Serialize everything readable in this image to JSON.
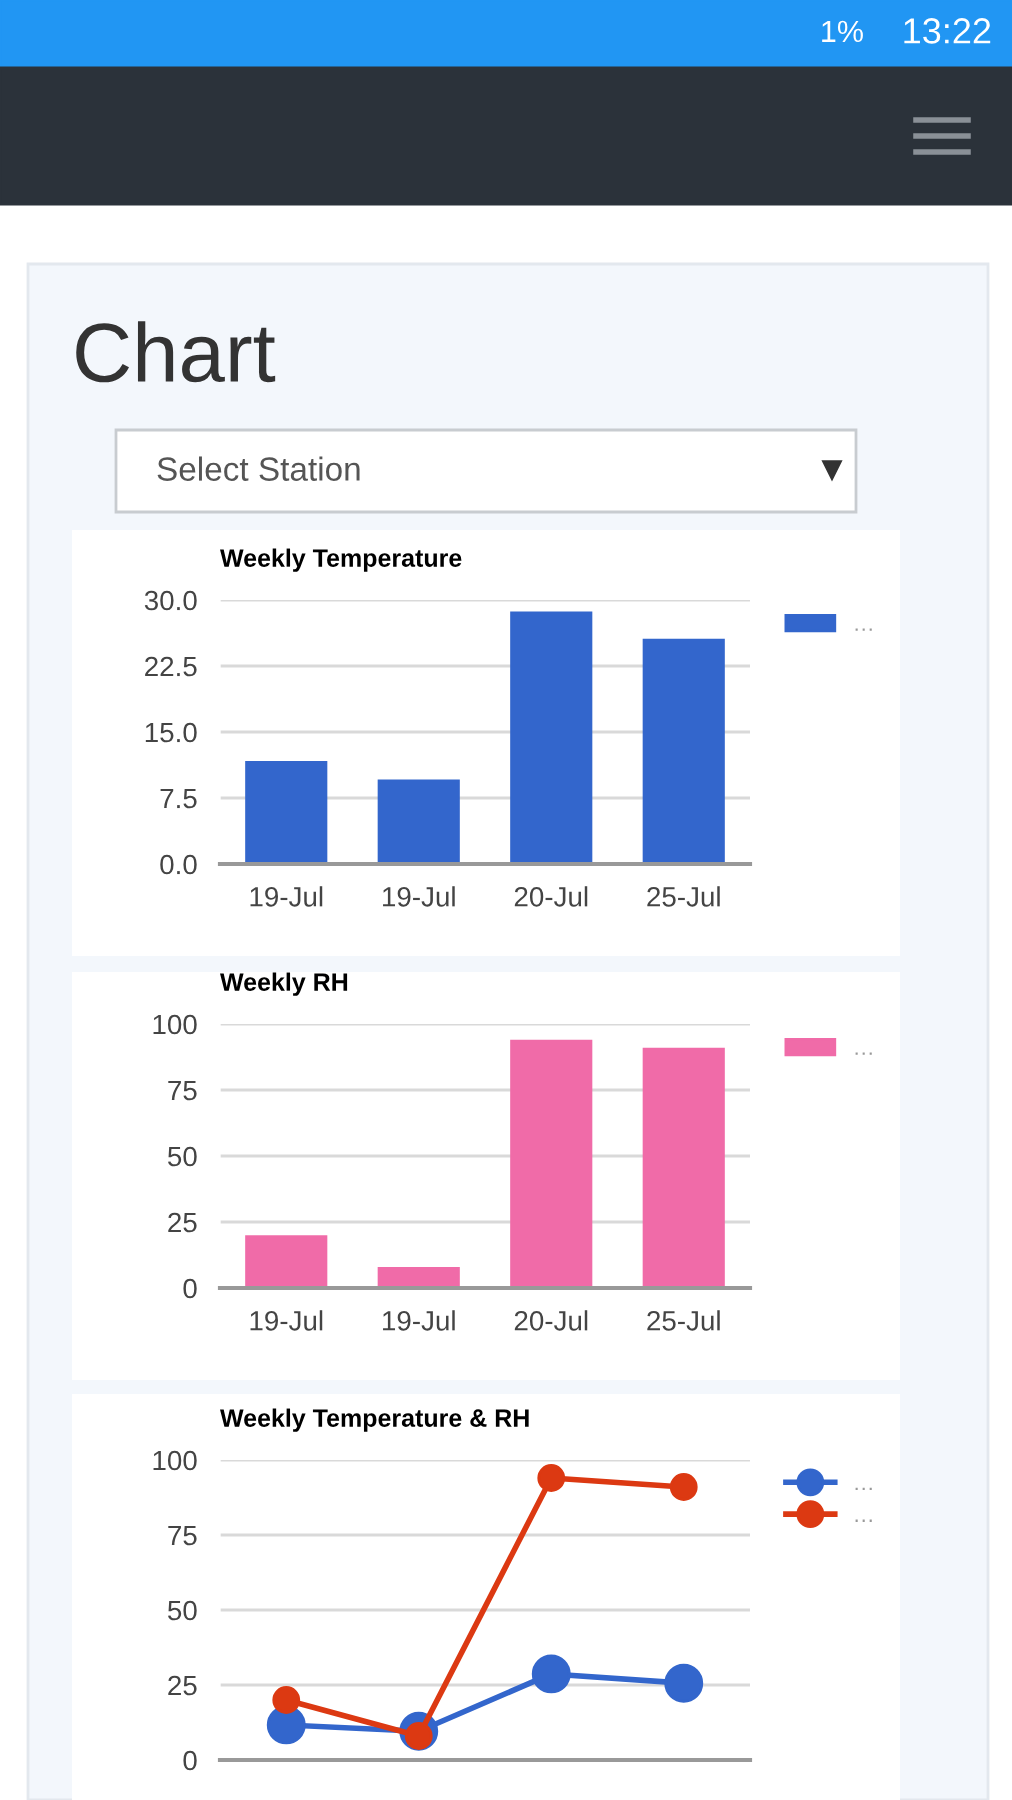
{
  "chart_data": [
    {
      "type": "other",
      "title": "Chart",
      "annotations": [
        "Select Station",
        "1%",
        "13:22"
      ]
    },
    {
      "type": "bar",
      "title": "Weekly Temperature",
      "categories": [
        "19-Jul",
        "19-Jul",
        "20-Jul",
        "25-Jul"
      ],
      "series": [
        {
          "name": "…",
          "color": "#3366cc",
          "values": [
            11.7,
            9.6,
            28.7,
            25.6
          ]
        }
      ],
      "ylim": [
        0,
        30
      ],
      "yticks": [
        {
          "value": 0,
          "label": "0.0"
        },
        7.5,
        {
          "value": 15,
          "label": "15.0"
        },
        22.5,
        {
          "value": 30,
          "label": "30.0"
        }
      ],
      "grid": "y",
      "legend": "top right"
    },
    {
      "type": "bar",
      "title": "Weekly RH",
      "categories": [
        "19-Jul",
        "19-Jul",
        "20-Jul",
        "25-Jul"
      ],
      "series": [
        {
          "name": "…",
          "color": "#f06ba8",
          "values": [
            20,
            8,
            94,
            91
          ]
        }
      ],
      "ylim": [
        0,
        100
      ],
      "yticks": [
        0,
        25,
        50,
        75,
        100
      ],
      "grid": "y",
      "legend": "top right"
    },
    {
      "type": "line",
      "title": "Weekly Temperature & RH",
      "categories": [
        null,
        null,
        null,
        null
      ],
      "series": [
        {
          "name": "…",
          "color": "#3366cc",
          "values": [
            11.7,
            9.6,
            28.7,
            25.6
          ]
        },
        {
          "name": "…",
          "color": "#dc3912",
          "values": [
            20,
            8,
            94,
            91
          ]
        }
      ],
      "ylim": [
        0,
        100
      ],
      "yticks": [
        0,
        25,
        50,
        75,
        100
      ],
      "grid": "y",
      "legend": "top right",
      "marker": "circle",
      "tick_labels": "y"
    }
  ]
}
